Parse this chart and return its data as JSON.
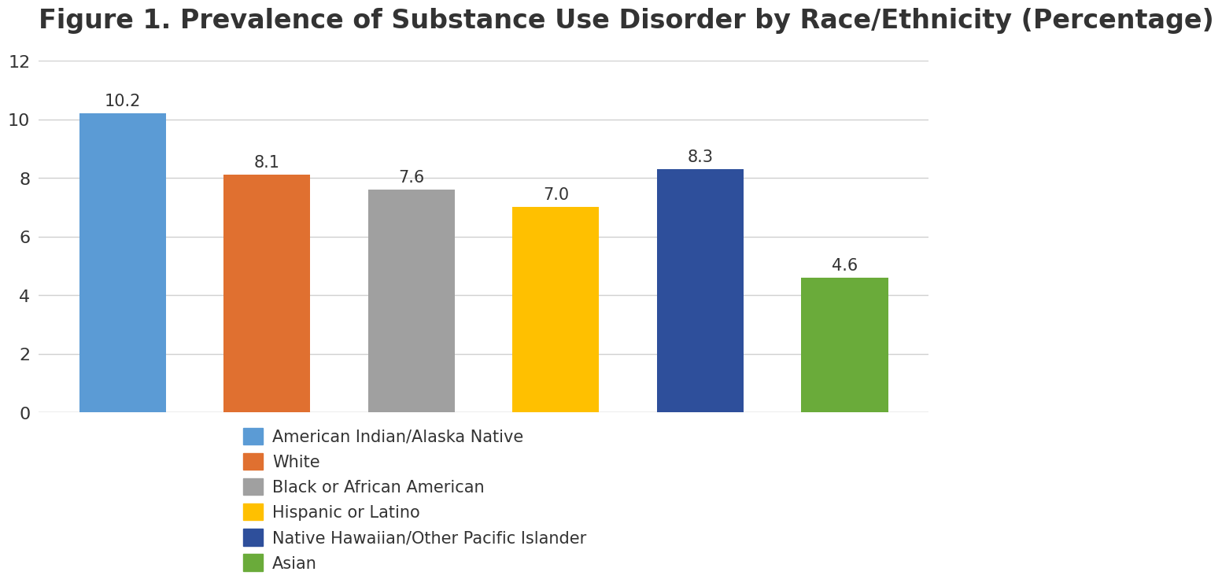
{
  "title": "Figure 1. Prevalence of Substance Use Disorder by Race/Ethnicity (Percentage)",
  "legend_labels": [
    "American Indian/Alaska Native",
    "White",
    "Black or African American",
    "Hispanic or Latino",
    "Native Hawaiian/Other Pacific Islander",
    "Asian"
  ],
  "values": [
    10.2,
    8.1,
    7.6,
    7.0,
    8.3,
    4.6
  ],
  "bar_colors": [
    "#5B9BD5",
    "#E07030",
    "#A0A0A0",
    "#FFC000",
    "#2E4F9B",
    "#6AAB3A"
  ],
  "ylim": [
    0,
    12
  ],
  "yticks": [
    0,
    2,
    4,
    6,
    8,
    10,
    12
  ],
  "title_fontsize": 24,
  "tick_fontsize": 16,
  "value_fontsize": 15,
  "legend_fontsize": 15,
  "background_color": "#FFFFFF",
  "plot_bg_color": "#FFFFFF",
  "grid_color": "#D0D0D0",
  "text_color": "#333333",
  "bar_width": 0.6,
  "bar_spacing": 0.4
}
